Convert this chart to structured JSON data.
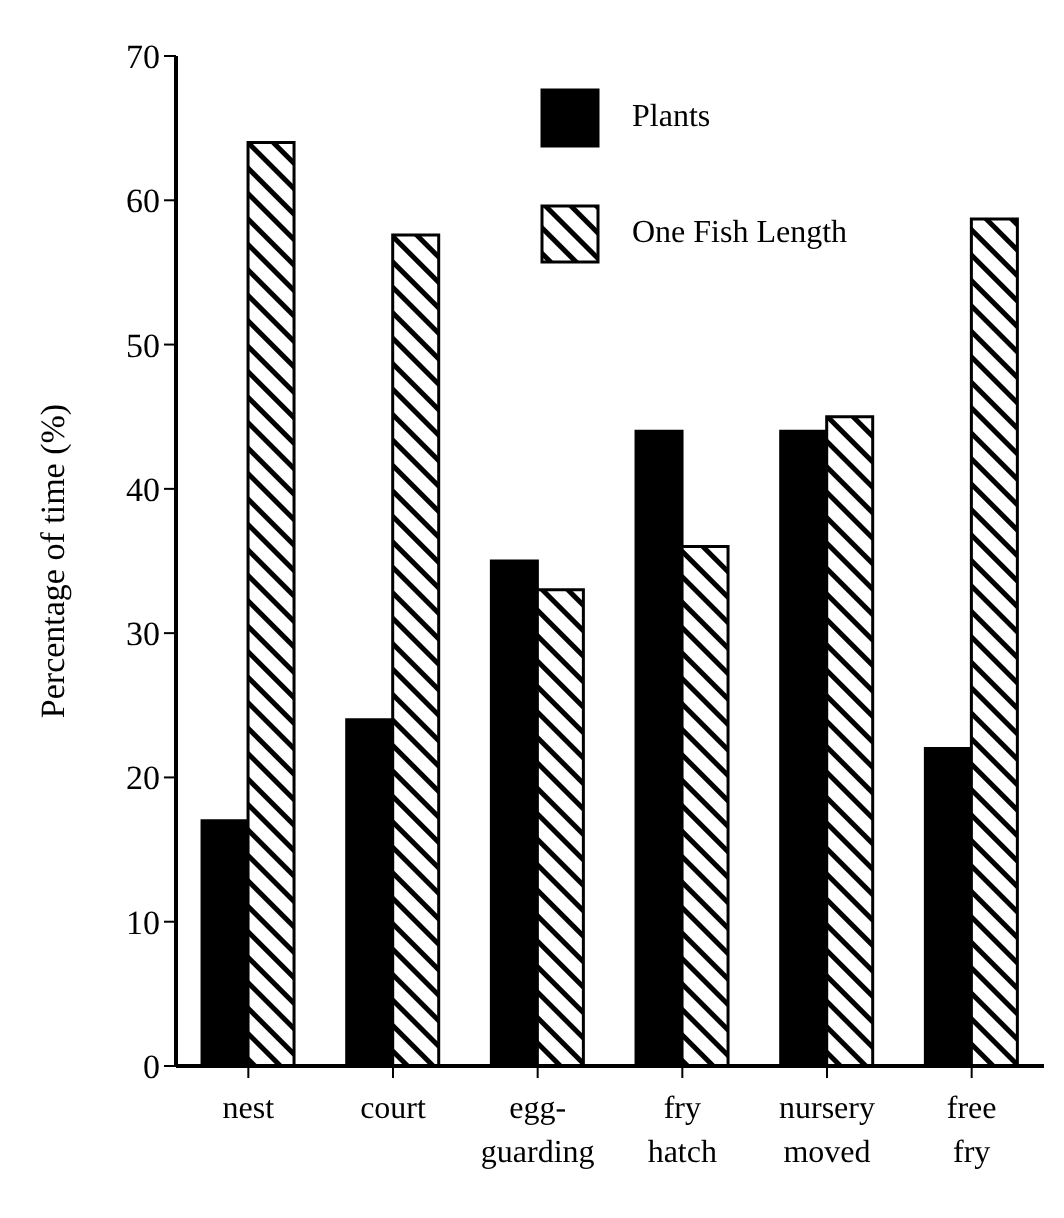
{
  "chart_data": {
    "type": "bar",
    "ylabel": "Percentage of time (%)",
    "categories": [
      "nest",
      "court",
      "egg-\nguarding",
      "fry\nhatch",
      "nursery\nmoved",
      "free\nfry"
    ],
    "series": [
      {
        "name": "Plants",
        "color": "#000000",
        "values": [
          17,
          24,
          35,
          44,
          44,
          22
        ]
      },
      {
        "name": "One Fish Length",
        "color": "#000000",
        "values": [
          64,
          57.6,
          33,
          36,
          45,
          58.7
        ]
      }
    ],
    "ylim": [
      0,
      70
    ],
    "yticks": [
      0,
      10,
      20,
      30,
      40,
      50,
      60,
      70
    ],
    "grid": false,
    "legend": "top right"
  }
}
